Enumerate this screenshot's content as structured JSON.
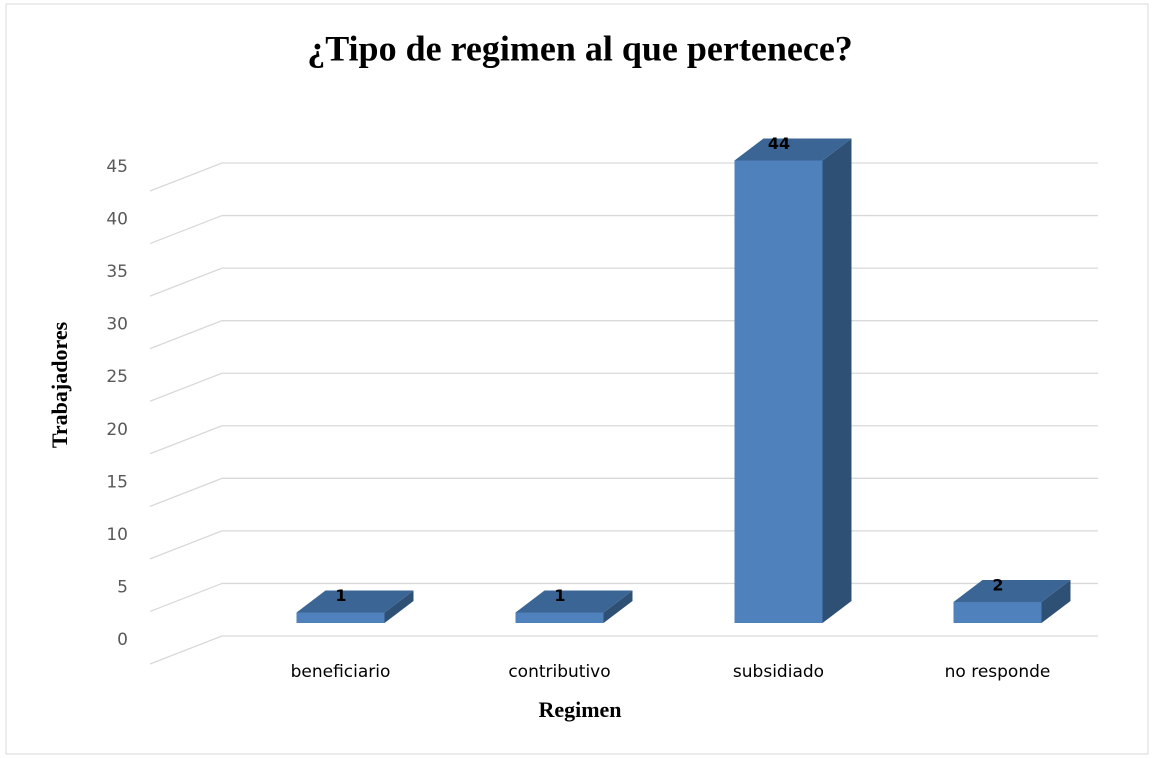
{
  "chart_data": {
    "type": "bar3d",
    "title": "¿Tipo de regimen al que pertenece?",
    "x_label": "Regimen",
    "y_label": "Trabajadores",
    "categories": [
      "beneficiario",
      "contributivo",
      "subsidiado",
      "no responde"
    ],
    "values": [
      1,
      1,
      44,
      2
    ],
    "color": "#4f81bd",
    "ylim": [
      0,
      45
    ],
    "yticks": [
      0,
      5,
      10,
      15,
      20,
      25,
      30,
      35,
      40,
      45
    ],
    "grid": true
  }
}
